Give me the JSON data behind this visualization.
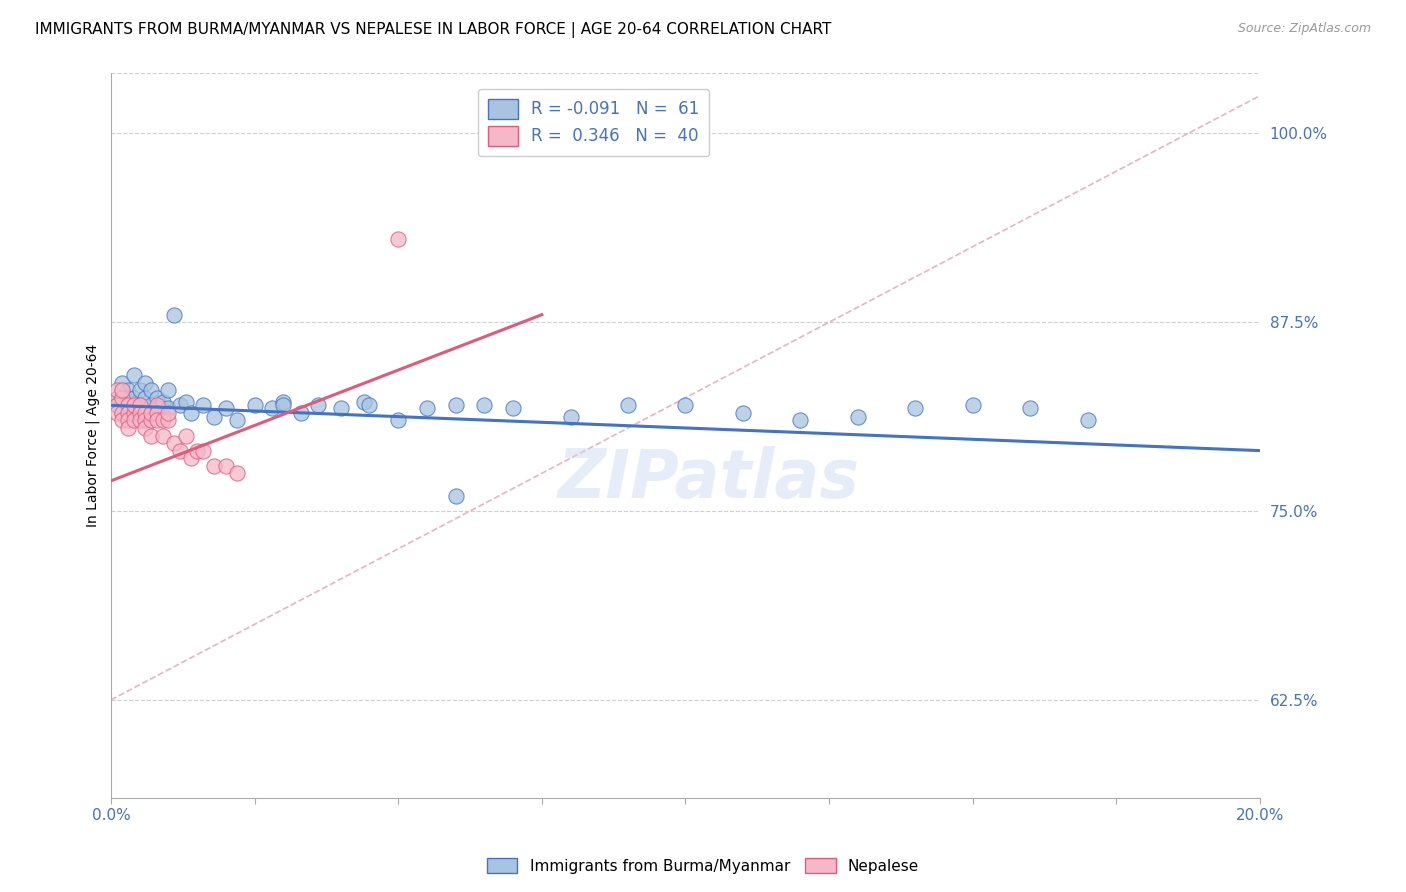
{
  "title": "IMMIGRANTS FROM BURMA/MYANMAR VS NEPALESE IN LABOR FORCE | AGE 20-64 CORRELATION CHART",
  "source": "Source: ZipAtlas.com",
  "ylabel": "In Labor Force | Age 20-64",
  "right_yticks": [
    0.625,
    0.75,
    0.875,
    1.0
  ],
  "right_yticklabels": [
    "62.5%",
    "75.0%",
    "87.5%",
    "100.0%"
  ],
  "xlim": [
    0.0,
    0.2
  ],
  "ylim": [
    0.56,
    1.04
  ],
  "legend_line1": "R = -0.091   N =  61",
  "legend_line2": "R =  0.346   N =  40",
  "blue_scatter_x": [
    0.001,
    0.001,
    0.002,
    0.002,
    0.002,
    0.003,
    0.003,
    0.003,
    0.003,
    0.004,
    0.004,
    0.004,
    0.004,
    0.005,
    0.005,
    0.005,
    0.006,
    0.006,
    0.006,
    0.007,
    0.007,
    0.007,
    0.008,
    0.008,
    0.009,
    0.009,
    0.01,
    0.01,
    0.011,
    0.012,
    0.013,
    0.014,
    0.016,
    0.018,
    0.02,
    0.022,
    0.025,
    0.028,
    0.03,
    0.033,
    0.036,
    0.04,
    0.044,
    0.05,
    0.055,
    0.06,
    0.065,
    0.07,
    0.08,
    0.09,
    0.1,
    0.11,
    0.12,
    0.13,
    0.14,
    0.15,
    0.16,
    0.17,
    0.03,
    0.045,
    0.06
  ],
  "blue_scatter_y": [
    0.82,
    0.825,
    0.83,
    0.815,
    0.835,
    0.82,
    0.83,
    0.825,
    0.815,
    0.84,
    0.82,
    0.815,
    0.825,
    0.83,
    0.82,
    0.815,
    0.825,
    0.835,
    0.81,
    0.82,
    0.815,
    0.83,
    0.825,
    0.818,
    0.822,
    0.812,
    0.818,
    0.83,
    0.88,
    0.82,
    0.822,
    0.815,
    0.82,
    0.812,
    0.818,
    0.81,
    0.82,
    0.818,
    0.822,
    0.815,
    0.82,
    0.818,
    0.822,
    0.81,
    0.818,
    0.76,
    0.82,
    0.818,
    0.812,
    0.82,
    0.82,
    0.815,
    0.81,
    0.812,
    0.818,
    0.82,
    0.818,
    0.81,
    0.82,
    0.82,
    0.82
  ],
  "pink_scatter_x": [
    0.001,
    0.001,
    0.001,
    0.002,
    0.002,
    0.002,
    0.002,
    0.003,
    0.003,
    0.003,
    0.003,
    0.004,
    0.004,
    0.004,
    0.005,
    0.005,
    0.005,
    0.006,
    0.006,
    0.006,
    0.007,
    0.007,
    0.007,
    0.008,
    0.008,
    0.008,
    0.009,
    0.009,
    0.01,
    0.01,
    0.011,
    0.012,
    0.013,
    0.014,
    0.015,
    0.016,
    0.018,
    0.02,
    0.022,
    0.05
  ],
  "pink_scatter_y": [
    0.82,
    0.815,
    0.83,
    0.825,
    0.815,
    0.81,
    0.83,
    0.82,
    0.815,
    0.81,
    0.805,
    0.815,
    0.82,
    0.81,
    0.82,
    0.815,
    0.81,
    0.815,
    0.81,
    0.805,
    0.81,
    0.815,
    0.8,
    0.82,
    0.815,
    0.81,
    0.81,
    0.8,
    0.81,
    0.815,
    0.795,
    0.79,
    0.8,
    0.785,
    0.79,
    0.79,
    0.78,
    0.78,
    0.775,
    0.93
  ],
  "blue_line_x": [
    0.0,
    0.2
  ],
  "blue_line_y": [
    0.82,
    0.79
  ],
  "pink_line_x": [
    0.0,
    0.075
  ],
  "pink_line_y": [
    0.77,
    0.88
  ],
  "ref_line_x": [
    0.0,
    0.2
  ],
  "ref_line_y": [
    0.625,
    1.025
  ],
  "blue_line_color": "#4472c4",
  "pink_line_color": "#e05a7a",
  "ref_line_color": "#e8a0b0",
  "scatter_blue_color": "#a8c4e0",
  "scatter_blue_edge": "#4472c4",
  "scatter_pink_color": "#f4b8c8",
  "scatter_pink_edge": "#e05a7a",
  "watermark": "ZIPatlas",
  "title_fontsize": 11,
  "axis_label_color": "#4472c4",
  "grid_color": "#d0d0d0",
  "legend_blue_color": "#a8c4e0",
  "legend_pink_color": "#f4b8c8"
}
